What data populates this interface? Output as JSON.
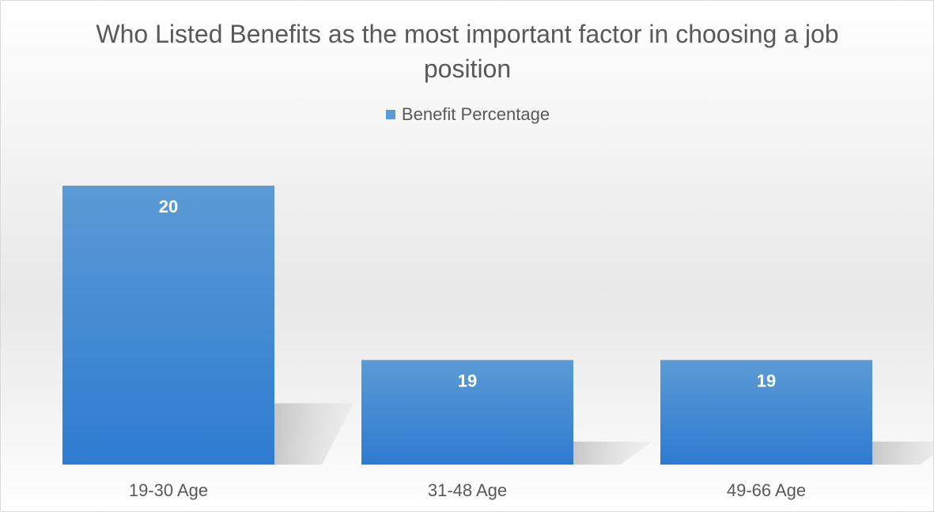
{
  "chart_data": {
    "type": "bar",
    "title": "Who Listed Benefits as the most important factor in choosing a job position",
    "categories": [
      "19-30 Age",
      "31-48 Age",
      "49-66 Age"
    ],
    "series": [
      {
        "name": "Benefit Percentage",
        "values": [
          20,
          19,
          19
        ]
      }
    ],
    "data_labels": [
      "20",
      "19",
      "19"
    ],
    "xlabel": "",
    "ylabel": "",
    "ylim": [
      18.4,
      20.2
    ],
    "grid": false,
    "legend_position": "top",
    "colors": {
      "bar": "#5b9bd5",
      "bar_dark": "#2e7bd1"
    }
  }
}
